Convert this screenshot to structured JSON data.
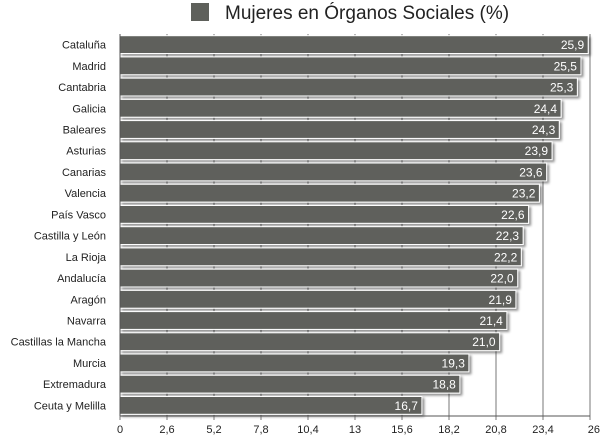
{
  "chart_data": {
    "type": "bar",
    "orientation": "horizontal",
    "legend_position": "top",
    "series": [
      {
        "name": "Mujeres en Órganos Sociales (%)",
        "color": "#5e605b"
      }
    ],
    "categories": [
      "Cataluña",
      "Madrid",
      "Cantabria",
      "Galicia",
      "Baleares",
      "Asturias",
      "Canarias",
      "Valencia",
      "País Vasco",
      "Castilla y León",
      "La Rioja",
      "Andalucía",
      "Aragón",
      "Navarra",
      "Castillas la Mancha",
      "Murcia",
      "Extremadura",
      "Ceuta y Melilla"
    ],
    "values": [
      25.9,
      25.5,
      25.3,
      24.4,
      24.3,
      23.9,
      23.6,
      23.2,
      22.6,
      22.3,
      22.2,
      22.0,
      21.9,
      21.4,
      21.0,
      19.3,
      18.8,
      16.7
    ],
    "value_labels": [
      "25,9",
      "25,5",
      "25,3",
      "24,4",
      "24,3",
      "23,9",
      "23,6",
      "23,2",
      "22,6",
      "22,3",
      "22,2",
      "22,0",
      "21,9",
      "21,4",
      "21,0",
      "19,3",
      "18,8",
      "16,7"
    ],
    "x_ticks": [
      0,
      2.6,
      5.2,
      7.8,
      10.4,
      13,
      15.6,
      18.2,
      20.8,
      23.4,
      26
    ],
    "x_tick_labels": [
      "0",
      "2,6",
      "5,2",
      "7,8",
      "10,4",
      "13",
      "15,6",
      "18,2",
      "20,8",
      "23,4",
      "26"
    ],
    "xlim": [
      0,
      26
    ],
    "grid": true
  }
}
